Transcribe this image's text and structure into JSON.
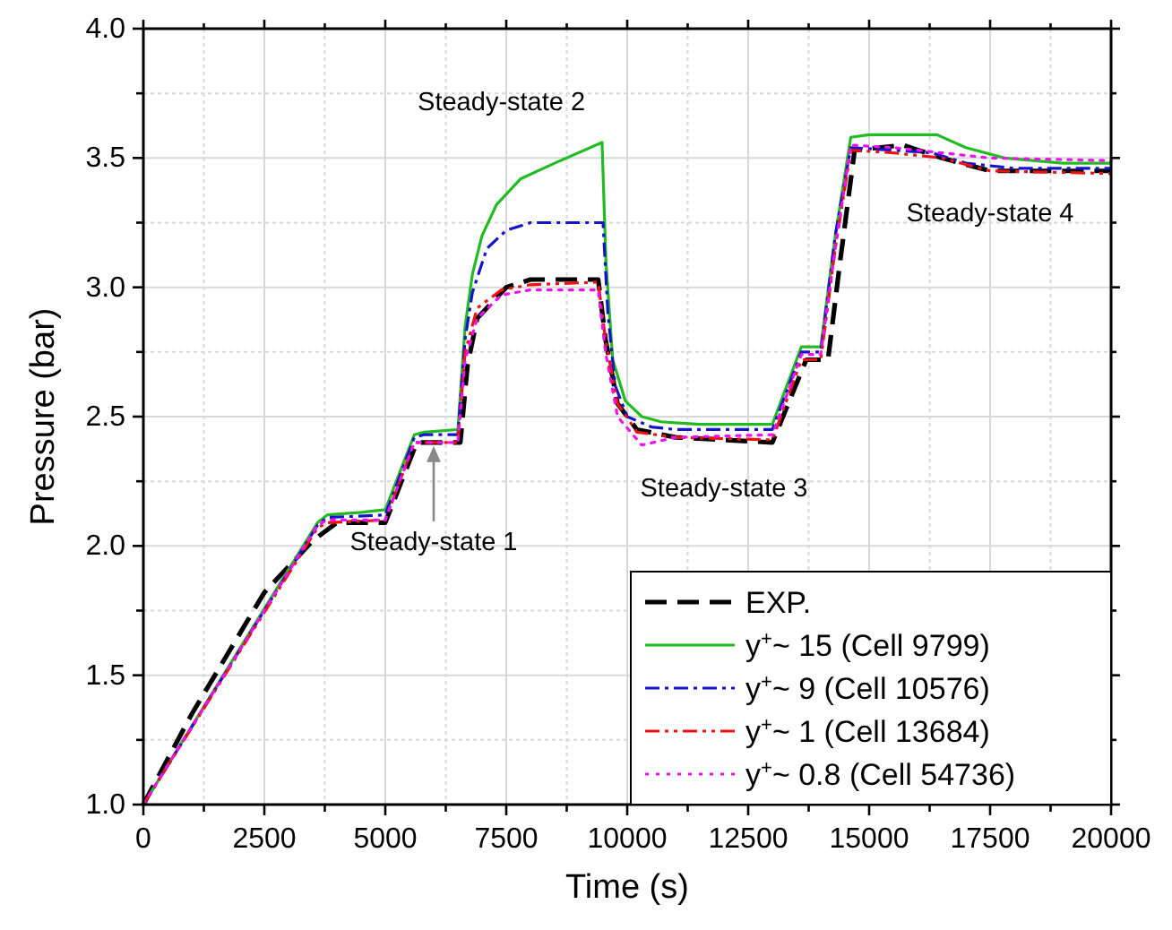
{
  "chart_data": {
    "type": "line",
    "xlabel": "Time (s)",
    "ylabel": "Pressure (bar)",
    "xlim": [
      0,
      20000
    ],
    "ylim": [
      1,
      4
    ],
    "xticks": [
      0,
      {
        "value": 1250,
        "label": null
      },
      2500,
      {
        "value": 3750,
        "label": null
      },
      5000,
      {
        "value": 6250,
        "label": null
      },
      7500,
      {
        "value": 8750,
        "label": null
      },
      10000,
      {
        "value": 11250,
        "label": null
      },
      12500,
      {
        "value": 13750,
        "label": null
      },
      15000,
      {
        "value": 16250,
        "label": null
      },
      17500,
      {
        "value": 18750,
        "label": null
      },
      20000
    ],
    "yticks": [
      {
        "value": 1,
        "label": "1.0"
      },
      {
        "value": 1.25,
        "label": null
      },
      {
        "value": 1.5,
        "label": "1.5"
      },
      {
        "value": 1.75,
        "label": null
      },
      {
        "value": 2,
        "label": "2.0"
      },
      {
        "value": 2.25,
        "label": null
      },
      {
        "value": 2.5,
        "label": "2.5"
      },
      {
        "value": 2.75,
        "label": null
      },
      {
        "value": 3,
        "label": "3.0"
      },
      {
        "value": 3.25,
        "label": null
      },
      {
        "value": 3.5,
        "label": "3.5"
      },
      {
        "value": 3.75,
        "label": null
      },
      {
        "value": 4,
        "label": "4.0"
      }
    ],
    "grid": true,
    "legend": "bottom right",
    "series": [
      {
        "name": "EXP.",
        "color": "#000000",
        "line_style": "dashed",
        "x": [
          0,
          1000,
          2500,
          3500,
          4000,
          5000,
          5650,
          6550,
          6700,
          6900,
          7500,
          8000,
          9400,
          9550,
          9800,
          10200,
          11000,
          13000,
          13700,
          14150,
          14400,
          14700,
          15700,
          16500,
          17500,
          20000
        ],
        "values": [
          1.0,
          1.35,
          1.82,
          2.02,
          2.09,
          2.09,
          2.4,
          2.4,
          2.7,
          2.88,
          3.0,
          3.03,
          3.03,
          2.8,
          2.55,
          2.45,
          2.42,
          2.4,
          2.72,
          2.72,
          3.1,
          3.53,
          3.55,
          3.5,
          3.45,
          3.45
        ]
      },
      {
        "name": "y$^{+}$~ 15 (Cell 9799)",
        "color": "#22bb22",
        "line_style": "solid",
        "x": [
          0,
          3600,
          3800,
          4500,
          5000,
          5600,
          5800,
          6500,
          6650,
          6800,
          7000,
          7300,
          7800,
          8500,
          9480,
          9560,
          9700,
          9963,
          10300,
          10700,
          11500,
          13000,
          13600,
          14000,
          14300,
          14620,
          15000,
          16400,
          17000,
          17800,
          19000,
          20000
        ],
        "values": [
          1.0,
          2.09,
          2.12,
          2.13,
          2.14,
          2.43,
          2.44,
          2.45,
          2.85,
          3.05,
          3.2,
          3.32,
          3.42,
          3.48,
          3.56,
          3.1,
          2.72,
          2.56,
          2.5,
          2.48,
          2.47,
          2.47,
          2.77,
          2.77,
          3.2,
          3.58,
          3.59,
          3.59,
          3.54,
          3.5,
          3.48,
          3.48
        ]
      },
      {
        "name": "y$^{+}$~ 9 (Cell 10576)",
        "color": "#1414cc",
        "line_style": "dashdot",
        "x": [
          0,
          3600,
          3800,
          5000,
          5600,
          5800,
          6500,
          6650,
          6800,
          7100,
          7500,
          8000,
          9500,
          9600,
          9750,
          10000,
          10500,
          11000,
          13000,
          13600,
          14000,
          14300,
          14620,
          15500,
          16300,
          17000,
          18000,
          20000
        ],
        "values": [
          1.0,
          2.08,
          2.11,
          2.12,
          2.42,
          2.43,
          2.43,
          2.8,
          2.98,
          3.15,
          3.22,
          3.25,
          3.25,
          2.9,
          2.62,
          2.5,
          2.46,
          2.45,
          2.45,
          2.75,
          2.75,
          3.2,
          3.54,
          3.53,
          3.52,
          3.48,
          3.46,
          3.46
        ]
      },
      {
        "name": "y$^{+}$~ 1 (Cell 13684)",
        "color": "#ee1111",
        "line_style": "dashdotdot",
        "x": [
          0,
          3600,
          3800,
          5000,
          5600,
          6500,
          6650,
          6900,
          7400,
          8000,
          9400,
          9550,
          9800,
          10200,
          11000,
          13000,
          13600,
          14000,
          14300,
          14620,
          15500,
          16500,
          17500,
          20000
        ],
        "values": [
          1.0,
          2.07,
          2.09,
          2.1,
          2.4,
          2.4,
          2.75,
          2.92,
          2.99,
          3.01,
          3.02,
          2.8,
          2.55,
          2.44,
          2.42,
          2.41,
          2.72,
          2.72,
          3.15,
          3.53,
          3.52,
          3.5,
          3.45,
          3.44
        ]
      },
      {
        "name": "y$^{+}$~ 0.8 (Cell 54736)",
        "color": "#ee11ee",
        "line_style": "dotted",
        "x": [
          0,
          3600,
          3800,
          5000,
          5600,
          6500,
          6650,
          6900,
          7400,
          8000,
          9400,
          9550,
          9800,
          10300,
          11000,
          13000,
          13600,
          14000,
          14300,
          14620,
          15500,
          16500,
          17500,
          20000
        ],
        "values": [
          1.0,
          2.08,
          2.1,
          2.1,
          2.4,
          2.4,
          2.72,
          2.88,
          2.97,
          2.99,
          2.99,
          2.75,
          2.5,
          2.39,
          2.42,
          2.43,
          2.74,
          2.74,
          3.15,
          3.55,
          3.54,
          3.52,
          3.5,
          3.49
        ]
      }
    ],
    "annotations": [
      {
        "text": "Steady-state 1",
        "x": 6000,
        "y": 2.4
      },
      "Steady-state 2",
      "Steady-state 3",
      "Steady-state 4"
    ]
  }
}
